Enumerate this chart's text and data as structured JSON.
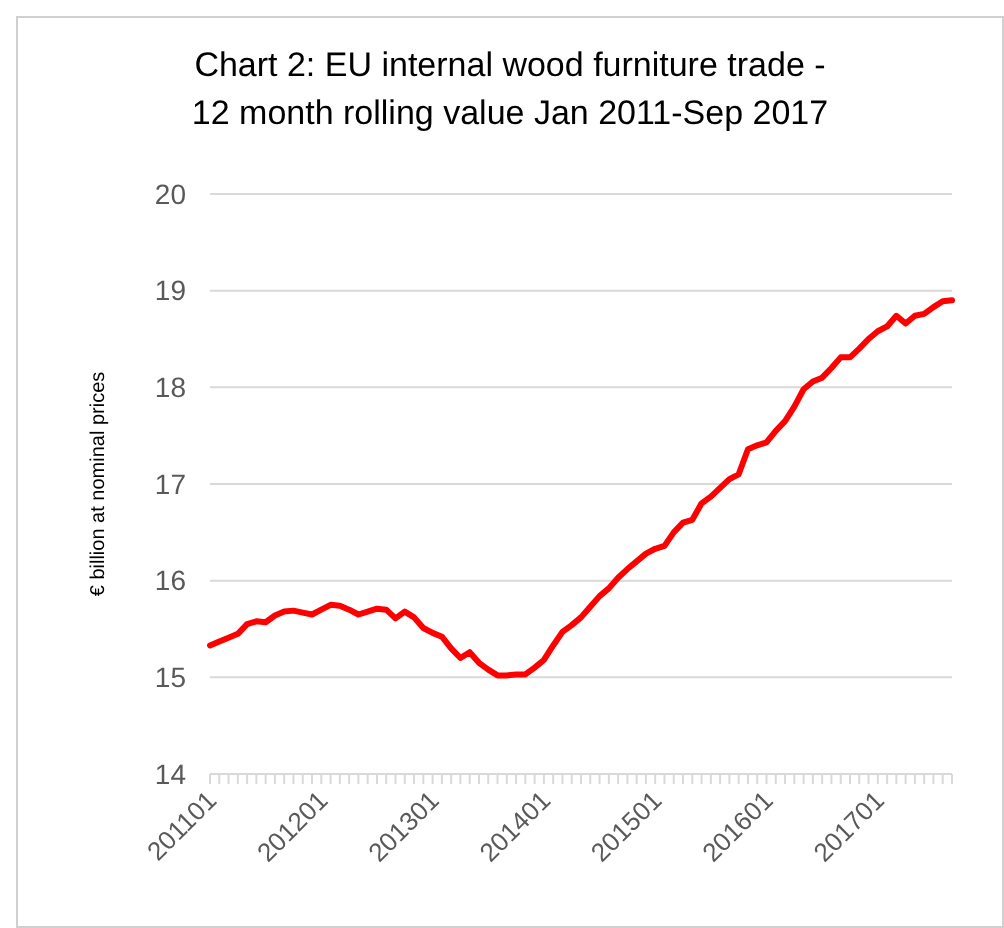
{
  "chart_data": {
    "type": "line",
    "title": "Chart 2: EU internal wood furniture trade - 12 month rolling value Jan 2011-Sep 2017",
    "ylabel": "€ billion at nominal prices",
    "categories": [
      "201101",
      null,
      null,
      null,
      null,
      null,
      null,
      null,
      null,
      null,
      null,
      null,
      "201201",
      null,
      null,
      null,
      null,
      null,
      null,
      null,
      null,
      null,
      null,
      null,
      "201301",
      null,
      null,
      null,
      null,
      null,
      null,
      null,
      null,
      null,
      null,
      null,
      "201401",
      null,
      null,
      null,
      null,
      null,
      null,
      null,
      null,
      null,
      null,
      null,
      "201501",
      null,
      null,
      null,
      null,
      null,
      null,
      null,
      null,
      null,
      null,
      null,
      "201601",
      null,
      null,
      null,
      null,
      null,
      null,
      null,
      null,
      null,
      null,
      null,
      "201701",
      null,
      null,
      null,
      null,
      null,
      null,
      null,
      null
    ],
    "series": [
      {
        "color": "#ff0000",
        "values": [
          15.33,
          15.37,
          15.41,
          15.45,
          15.55,
          15.58,
          15.57,
          15.64,
          15.68,
          15.69,
          15.67,
          15.65,
          15.7,
          15.75,
          15.74,
          15.7,
          15.65,
          15.68,
          15.71,
          15.7,
          15.61,
          15.68,
          15.62,
          15.51,
          15.46,
          15.42,
          15.3,
          15.2,
          15.26,
          15.15,
          15.08,
          15.02,
          15.02,
          15.03,
          15.03,
          15.1,
          15.18,
          15.33,
          15.47,
          15.54,
          15.62,
          15.73,
          15.84,
          15.92,
          16.03,
          16.12,
          16.2,
          16.28,
          16.33,
          16.36,
          16.5,
          16.6,
          16.63,
          16.8,
          16.87,
          16.96,
          17.05,
          17.1,
          17.36,
          17.4,
          17.43,
          17.55,
          17.65,
          17.8,
          17.98,
          18.06,
          18.1,
          18.2,
          18.31,
          18.31,
          18.4,
          18.5,
          18.58,
          18.63,
          18.74,
          18.66,
          18.74,
          18.76,
          18.83,
          18.89,
          18.9
        ]
      }
    ],
    "ylim": [
      14,
      20
    ],
    "yticks": [
      14,
      15,
      16,
      17,
      18,
      19,
      20
    ],
    "grid": "y",
    "marker": "none",
    "line_style": "solid"
  }
}
